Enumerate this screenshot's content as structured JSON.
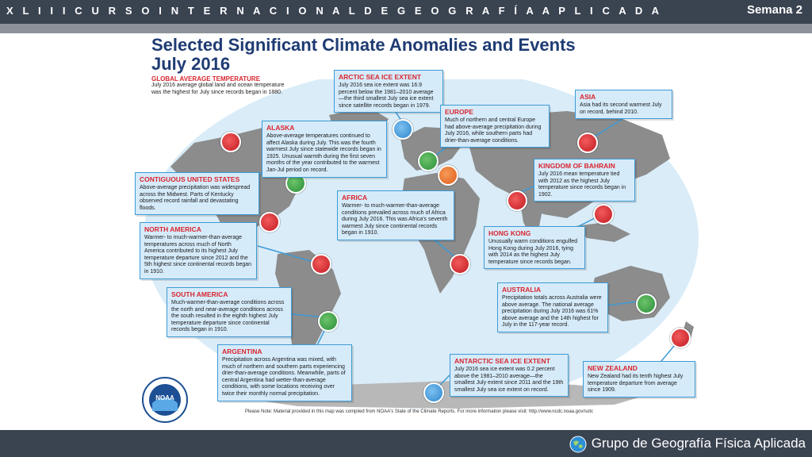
{
  "header": {
    "course_title": "X L I I I  C U R S O  I N T E R N A C I O N A L  D E G E O G R A F Í A  A P L I C A D A",
    "week": "Semana 2"
  },
  "footer": {
    "group_name": "Grupo de Geografía Física Aplicada"
  },
  "poster": {
    "title_line1": "Selected Significant Climate Anomalies and Events",
    "title_line2": "July 2016",
    "global": {
      "heading": "GLOBAL AVERAGE TEMPERATURE",
      "body": "July 2016 average global land and ocean temperature was the highest for July since records began in 1880."
    },
    "note": "Please Note: Material provided in this map was compiled from NOAA's State of the Climate Reports. For more information please visit: http://www.ncdc.noaa.gov/sotc",
    "logo_text": "NOAA",
    "events": [
      {
        "id": "arctic",
        "heading": "ARCTIC SEA ICE EXTENT",
        "body": "July 2016 sea ice extent was 16.9 percent below the 1981–2010 average—the third smallest July sea ice extent since satellite records began in 1979."
      },
      {
        "id": "asia",
        "heading": "ASIA",
        "body": "Asia had its second warmest July on record, behind 2010."
      },
      {
        "id": "alaska",
        "heading": "ALASKA",
        "body": "Above-average temperatures continued to affect Alaska during July. This was the fourth warmest July since statewide records began in 1925. Unusual warmth during the first seven months of the year contributed to the warmest Jan-Jul period on record."
      },
      {
        "id": "europe",
        "heading": "EUROPE",
        "body": "Much of northern and central Europe had above-average precipitation during July 2016, while southern parts had drier-than-average conditions."
      },
      {
        "id": "bahrain",
        "heading": "KINGDOM OF BAHRAIN",
        "body": "July 2016 mean temperature tied with 2012 as the highest July temperature since records began in 1902."
      },
      {
        "id": "conus",
        "heading": "CONTIGUOUS UNITED STATES",
        "body": "Above-average precipitation was widespread across the Midwest. Parts of Kentucky observed record rainfall and devastating floods."
      },
      {
        "id": "africa",
        "heading": "AFRICA",
        "body": "Warmer- to much-warmer-than-average conditions prevailed across much of Africa during July 2016. This was Africa's seventh warmest July since continental records began in 1910."
      },
      {
        "id": "hongkong",
        "heading": "HONG KONG",
        "body": "Unusually warm conditions engulfed Hong Kong during July 2016, tying with 2014 as the highest July temperature since records began."
      },
      {
        "id": "northamerica",
        "heading": "NORTH AMERICA",
        "body": "Warmer- to much-warmer-than-average temperatures across much of North America contributed to its highest July temperature departure since 2012 and the 5th highest since continental records began in 1910."
      },
      {
        "id": "australia",
        "heading": "AUSTRALIA",
        "body": "Precipitation totals across Australia were above average. The national average precipitation during July 2016 was 61% above average and the 14th highest for July in the 117-year record."
      },
      {
        "id": "southamerica",
        "heading": "SOUTH AMERICA",
        "body": "Much-warmer-than-average conditions across the north and near-average conditions across the south resulted in the eighth highest July temperature departure since continental records began in 1910."
      },
      {
        "id": "argentina",
        "heading": "ARGENTINA",
        "body": "Precipitation across Argentina was mixed, with much of northern and southern parts experiencing drier-than-average conditions. Meanwhile, parts of central Argentina had wetter-than-average conditions, with some locations receiving over twice their monthly normal precipitation."
      },
      {
        "id": "antarctic",
        "heading": "ANTARCTIC SEA ICE EXTENT",
        "body": "July 2016 sea ice extent was 0.2 percent above the 1981–2010 average—the smallest July extent since 2011 and the 19th smallest July sea ice extent on record."
      },
      {
        "id": "newzealand",
        "heading": "NEW ZEALAND",
        "body": "New Zealand had its tenth highest July temperature departure from average since 1909."
      }
    ]
  },
  "colors": {
    "bar": "#3a4350",
    "title": "#1e3b73",
    "heading_red": "#d9262f",
    "box_fill": "#d6ebfa",
    "box_border": "#3d9ad5",
    "ocean": "#d9ecf8",
    "land": "#8c8c8c"
  },
  "icons": [
    "noaa-logo-icon",
    "globe-icon",
    "thermometer-icon",
    "raindrop-icon",
    "ice-icon"
  ]
}
